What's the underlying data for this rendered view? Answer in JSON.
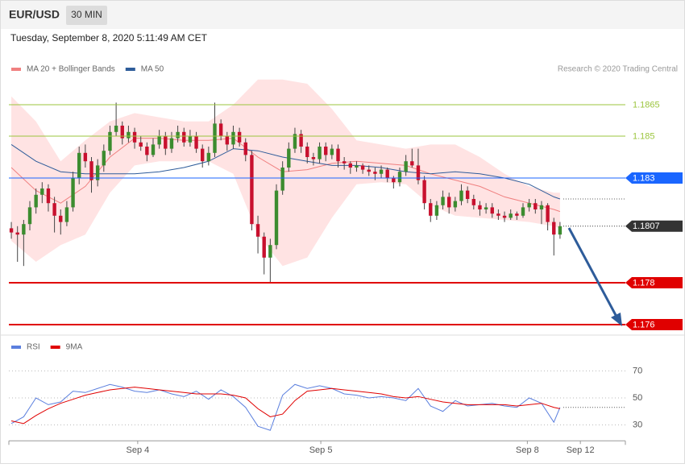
{
  "header": {
    "symbol": "EUR/USD",
    "timeframe": "30 MIN",
    "timestamp": "Tuesday, September 8, 2020 5:11:49 AM CET",
    "credit": "Research © 2020 Trading Central"
  },
  "chart_data": [
    {
      "type": "candlestick",
      "up_color": "#3c8c2f",
      "down_color": "#c8102e",
      "wick_color": "#444444",
      "xlim": [
        -0.4,
        99.6
      ],
      "ylim": [
        1.1758,
        1.188
      ],
      "legend": "top-left",
      "ohlc": [
        [
          1.1806,
          1.1809,
          1.1801,
          1.1804
        ],
        [
          1.1804,
          1.1807,
          1.179,
          1.1803
        ],
        [
          1.1803,
          1.181,
          1.1788,
          1.1808
        ],
        [
          1.1808,
          1.1819,
          1.1805,
          1.1816
        ],
        [
          1.1816,
          1.1825,
          1.1813,
          1.1822
        ],
        [
          1.1822,
          1.1828,
          1.1818,
          1.1825
        ],
        [
          1.1825,
          1.1827,
          1.1814,
          1.1818
        ],
        [
          1.1818,
          1.1821,
          1.1804,
          1.1812
        ],
        [
          1.1812,
          1.1815,
          1.1803,
          1.1809
        ],
        [
          1.1809,
          1.1819,
          1.1807,
          1.1816
        ],
        [
          1.1816,
          1.1833,
          1.1814,
          1.183
        ],
        [
          1.183,
          1.1845,
          1.1827,
          1.1842
        ],
        [
          1.1842,
          1.1846,
          1.1835,
          1.1838
        ],
        [
          1.1838,
          1.184,
          1.1823,
          1.1829
        ],
        [
          1.1829,
          1.1839,
          1.1826,
          1.1836
        ],
        [
          1.1836,
          1.1846,
          1.1833,
          1.1843
        ],
        [
          1.1843,
          1.1855,
          1.1841,
          1.1852
        ],
        [
          1.1852,
          1.1866,
          1.185,
          1.1855
        ],
        [
          1.1855,
          1.1857,
          1.1846,
          1.1849
        ],
        [
          1.1849,
          1.1855,
          1.1847,
          1.1852
        ],
        [
          1.1852,
          1.1854,
          1.1844,
          1.1847
        ],
        [
          1.1847,
          1.185,
          1.1843,
          1.1845
        ],
        [
          1.1845,
          1.1847,
          1.1838,
          1.1841
        ],
        [
          1.1841,
          1.1849,
          1.184,
          1.1846
        ],
        [
          1.1846,
          1.1853,
          1.1844,
          1.185
        ],
        [
          1.185,
          1.1852,
          1.1841,
          1.1844
        ],
        [
          1.1844,
          1.1852,
          1.1842,
          1.1849
        ],
        [
          1.1849,
          1.1855,
          1.1847,
          1.1852
        ],
        [
          1.1852,
          1.1854,
          1.1845,
          1.1847
        ],
        [
          1.1847,
          1.1853,
          1.1845,
          1.185
        ],
        [
          1.185,
          1.1852,
          1.1842,
          1.1844
        ],
        [
          1.1844,
          1.1846,
          1.1835,
          1.1838
        ],
        [
          1.1838,
          1.1845,
          1.1836,
          1.1842
        ],
        [
          1.1842,
          1.1866,
          1.184,
          1.1856
        ],
        [
          1.1856,
          1.1858,
          1.1848,
          1.185
        ],
        [
          1.185,
          1.1852,
          1.1843,
          1.1846
        ],
        [
          1.1846,
          1.1855,
          1.1844,
          1.1852
        ],
        [
          1.1852,
          1.1854,
          1.1845,
          1.1847
        ],
        [
          1.1847,
          1.1849,
          1.1838,
          1.1841
        ],
        [
          1.1841,
          1.1843,
          1.1805,
          1.1808
        ],
        [
          1.1808,
          1.1812,
          1.1794,
          1.1802
        ],
        [
          1.1802,
          1.1804,
          1.1784,
          1.1792
        ],
        [
          1.1792,
          1.1801,
          1.178,
          1.1798
        ],
        [
          1.1798,
          1.1827,
          1.1796,
          1.1824
        ],
        [
          1.1824,
          1.1838,
          1.1822,
          1.1835
        ],
        [
          1.1835,
          1.1847,
          1.1833,
          1.1844
        ],
        [
          1.1844,
          1.1854,
          1.1842,
          1.1851
        ],
        [
          1.1851,
          1.1853,
          1.1842,
          1.1845
        ],
        [
          1.1845,
          1.1847,
          1.1837,
          1.184
        ],
        [
          1.184,
          1.1842,
          1.1836,
          1.1839
        ],
        [
          1.1839,
          1.1847,
          1.1837,
          1.1845
        ],
        [
          1.1845,
          1.1847,
          1.1838,
          1.1841
        ],
        [
          1.1841,
          1.1846,
          1.1839,
          1.1844
        ],
        [
          1.1844,
          1.1846,
          1.1835,
          1.1838
        ],
        [
          1.1838,
          1.184,
          1.1834,
          1.1837
        ],
        [
          1.1837,
          1.1838,
          1.1832,
          1.1835
        ],
        [
          1.1835,
          1.1838,
          1.1833,
          1.1836
        ],
        [
          1.1836,
          1.1837,
          1.1832,
          1.1834
        ],
        [
          1.1834,
          1.1836,
          1.1831,
          1.1833
        ],
        [
          1.1833,
          1.1835,
          1.1829,
          1.1832
        ],
        [
          1.1832,
          1.1836,
          1.183,
          1.1834
        ],
        [
          1.1834,
          1.1835,
          1.1828,
          1.183
        ],
        [
          1.183,
          1.1831,
          1.1825,
          1.1828
        ],
        [
          1.1828,
          1.1835,
          1.1826,
          1.1833
        ],
        [
          1.1833,
          1.1841,
          1.1831,
          1.1838
        ],
        [
          1.1838,
          1.1844,
          1.1835,
          1.1836
        ],
        [
          1.1836,
          1.1844,
          1.1827,
          1.1829
        ],
        [
          1.1829,
          1.1831,
          1.1815,
          1.1818
        ],
        [
          1.1818,
          1.182,
          1.1809,
          1.1812
        ],
        [
          1.1812,
          1.1819,
          1.181,
          1.1817
        ],
        [
          1.1817,
          1.1824,
          1.1815,
          1.1821
        ],
        [
          1.1821,
          1.1823,
          1.1813,
          1.1816
        ],
        [
          1.1816,
          1.1821,
          1.1814,
          1.1819
        ],
        [
          1.1819,
          1.1827,
          1.1817,
          1.1824
        ],
        [
          1.1824,
          1.1826,
          1.1818,
          1.182
        ],
        [
          1.182,
          1.1822,
          1.1815,
          1.1817
        ],
        [
          1.1817,
          1.1819,
          1.1812,
          1.1815
        ],
        [
          1.1815,
          1.1818,
          1.1813,
          1.1816
        ],
        [
          1.1816,
          1.1818,
          1.1811,
          1.1813
        ],
        [
          1.1813,
          1.1815,
          1.181,
          1.1812
        ],
        [
          1.1812,
          1.1814,
          1.1809,
          1.1811
        ],
        [
          1.1811,
          1.1815,
          1.181,
          1.1813
        ],
        [
          1.1813,
          1.1814,
          1.181,
          1.1812
        ],
        [
          1.1812,
          1.1818,
          1.1811,
          1.1816
        ],
        [
          1.1816,
          1.182,
          1.1814,
          1.1818
        ],
        [
          1.1818,
          1.182,
          1.1813,
          1.1815
        ],
        [
          1.1815,
          1.1819,
          1.1808,
          1.1817
        ],
        [
          1.1817,
          1.1818,
          1.1805,
          1.1809
        ],
        [
          1.1809,
          1.1811,
          1.1793,
          1.1803
        ],
        [
          1.1803,
          1.1809,
          1.1801,
          1.1807
        ]
      ],
      "series": [
        {
          "name": "MA 20 + Bollinger Bands",
          "color": "#f08080",
          "band_color": "#ffe3e3",
          "x": [
            0,
            4,
            8,
            12,
            16,
            20,
            24,
            28,
            32,
            36,
            40,
            44,
            48,
            52,
            56,
            60,
            64,
            68,
            72,
            76,
            80,
            84,
            88,
            89
          ],
          "values": [
            1.1835,
            1.1824,
            1.1818,
            1.1826,
            1.184,
            1.1849,
            1.1849,
            1.1848,
            1.1848,
            1.1849,
            1.184,
            1.1833,
            1.1834,
            1.1837,
            1.1838,
            1.1837,
            1.1836,
            1.1832,
            1.1829,
            1.1826,
            1.1821,
            1.1818,
            1.1815,
            1.1814
          ],
          "upper": [
            1.1869,
            1.1857,
            1.1838,
            1.1848,
            1.1857,
            1.1861,
            1.1859,
            1.1857,
            1.1857,
            1.1865,
            1.1877,
            1.1877,
            1.1875,
            1.1863,
            1.1848,
            1.1846,
            1.1844,
            1.1846,
            1.1846,
            1.184,
            1.1832,
            1.1826,
            1.1823,
            1.1823
          ],
          "lower": [
            1.18,
            1.179,
            1.1798,
            1.1803,
            1.1823,
            1.1836,
            1.1838,
            1.1838,
            1.1838,
            1.1832,
            1.1803,
            1.1788,
            1.1792,
            1.1811,
            1.1827,
            1.1828,
            1.1827,
            1.1817,
            1.1812,
            1.1811,
            1.181,
            1.1809,
            1.1807,
            1.1806
          ]
        },
        {
          "name": "MA 50",
          "color": "#2e5c9a",
          "x": [
            0,
            4,
            8,
            12,
            16,
            20,
            24,
            28,
            32,
            36,
            40,
            44,
            48,
            52,
            56,
            60,
            64,
            68,
            72,
            76,
            80,
            84,
            88,
            89
          ],
          "values": [
            1.1846,
            1.1838,
            1.1833,
            1.1832,
            1.1832,
            1.1832,
            1.1833,
            1.1835,
            1.1838,
            1.1844,
            1.1843,
            1.184,
            1.1838,
            1.1836,
            1.1836,
            1.1835,
            1.1833,
            1.1832,
            1.1833,
            1.1832,
            1.183,
            1.1827,
            1.1821,
            1.182
          ]
        }
      ],
      "levels": [
        {
          "value": 1.1865,
          "color": "#9bc53d",
          "boxed": false,
          "style": "solid"
        },
        {
          "value": 1.185,
          "color": "#9bc53d",
          "boxed": false,
          "style": "solid"
        },
        {
          "value": 1.183,
          "color": "#1a66ff",
          "boxed": true,
          "style": "solid"
        },
        {
          "value": 1.1807,
          "color": "#333333",
          "boxed": true,
          "style": "dotted"
        },
        {
          "value": 1.178,
          "color": "#e00000",
          "boxed": true,
          "style": "solid"
        },
        {
          "value": 1.176,
          "color": "#e00000",
          "boxed": true,
          "style": "solid"
        }
      ]
    },
    {
      "type": "line",
      "xlim": [
        -0.4,
        99.6
      ],
      "ylim": [
        20,
        80
      ],
      "yticks": [
        30,
        50,
        70
      ],
      "grid": true,
      "legend": "top-left",
      "xticks": [
        {
          "value": 20.5,
          "label": "Sep 4"
        },
        {
          "value": 50.2,
          "label": "Sep 5"
        },
        {
          "value": 83.7,
          "label": "Sep 8"
        },
        {
          "value": 92.3,
          "label": "Sep 12"
        }
      ],
      "series": [
        {
          "name": "RSI",
          "color": "#5b7fde",
          "x": [
            0,
            2,
            4,
            6,
            8,
            10,
            12,
            14,
            16,
            18,
            20,
            22,
            24,
            26,
            28,
            30,
            32,
            34,
            36,
            38,
            40,
            42,
            44,
            46,
            48,
            50,
            52,
            54,
            56,
            58,
            60,
            62,
            64,
            66,
            68,
            70,
            72,
            74,
            76,
            78,
            80,
            82,
            84,
            86,
            88,
            89
          ],
          "values": [
            31,
            36,
            50,
            45,
            47,
            55,
            54,
            57,
            60,
            58,
            55,
            54,
            56,
            53,
            51,
            55,
            49,
            56,
            51,
            43,
            29,
            26,
            52,
            60,
            57,
            59,
            57,
            53,
            52,
            50,
            51,
            50,
            48,
            57,
            44,
            40,
            48,
            44,
            45,
            46,
            44,
            43,
            50,
            46,
            32,
            43
          ]
        },
        {
          "name": "9MA",
          "color": "#e00000",
          "x": [
            0,
            2,
            4,
            6,
            8,
            10,
            12,
            14,
            16,
            18,
            20,
            22,
            24,
            26,
            28,
            30,
            32,
            34,
            36,
            38,
            40,
            42,
            44,
            46,
            48,
            50,
            52,
            54,
            56,
            58,
            60,
            62,
            64,
            66,
            68,
            70,
            72,
            74,
            76,
            78,
            80,
            82,
            84,
            86,
            88,
            89
          ],
          "values": [
            33,
            31,
            37,
            42,
            46,
            49,
            52,
            54,
            56,
            57,
            58,
            57,
            56,
            55,
            54,
            53,
            53,
            53,
            52,
            50,
            42,
            36,
            38,
            48,
            55,
            56,
            57,
            56,
            55,
            54,
            53,
            51,
            50,
            51,
            49,
            47,
            46,
            45,
            45,
            45,
            45,
            44,
            45,
            46,
            43,
            42
          ]
        }
      ]
    }
  ]
}
